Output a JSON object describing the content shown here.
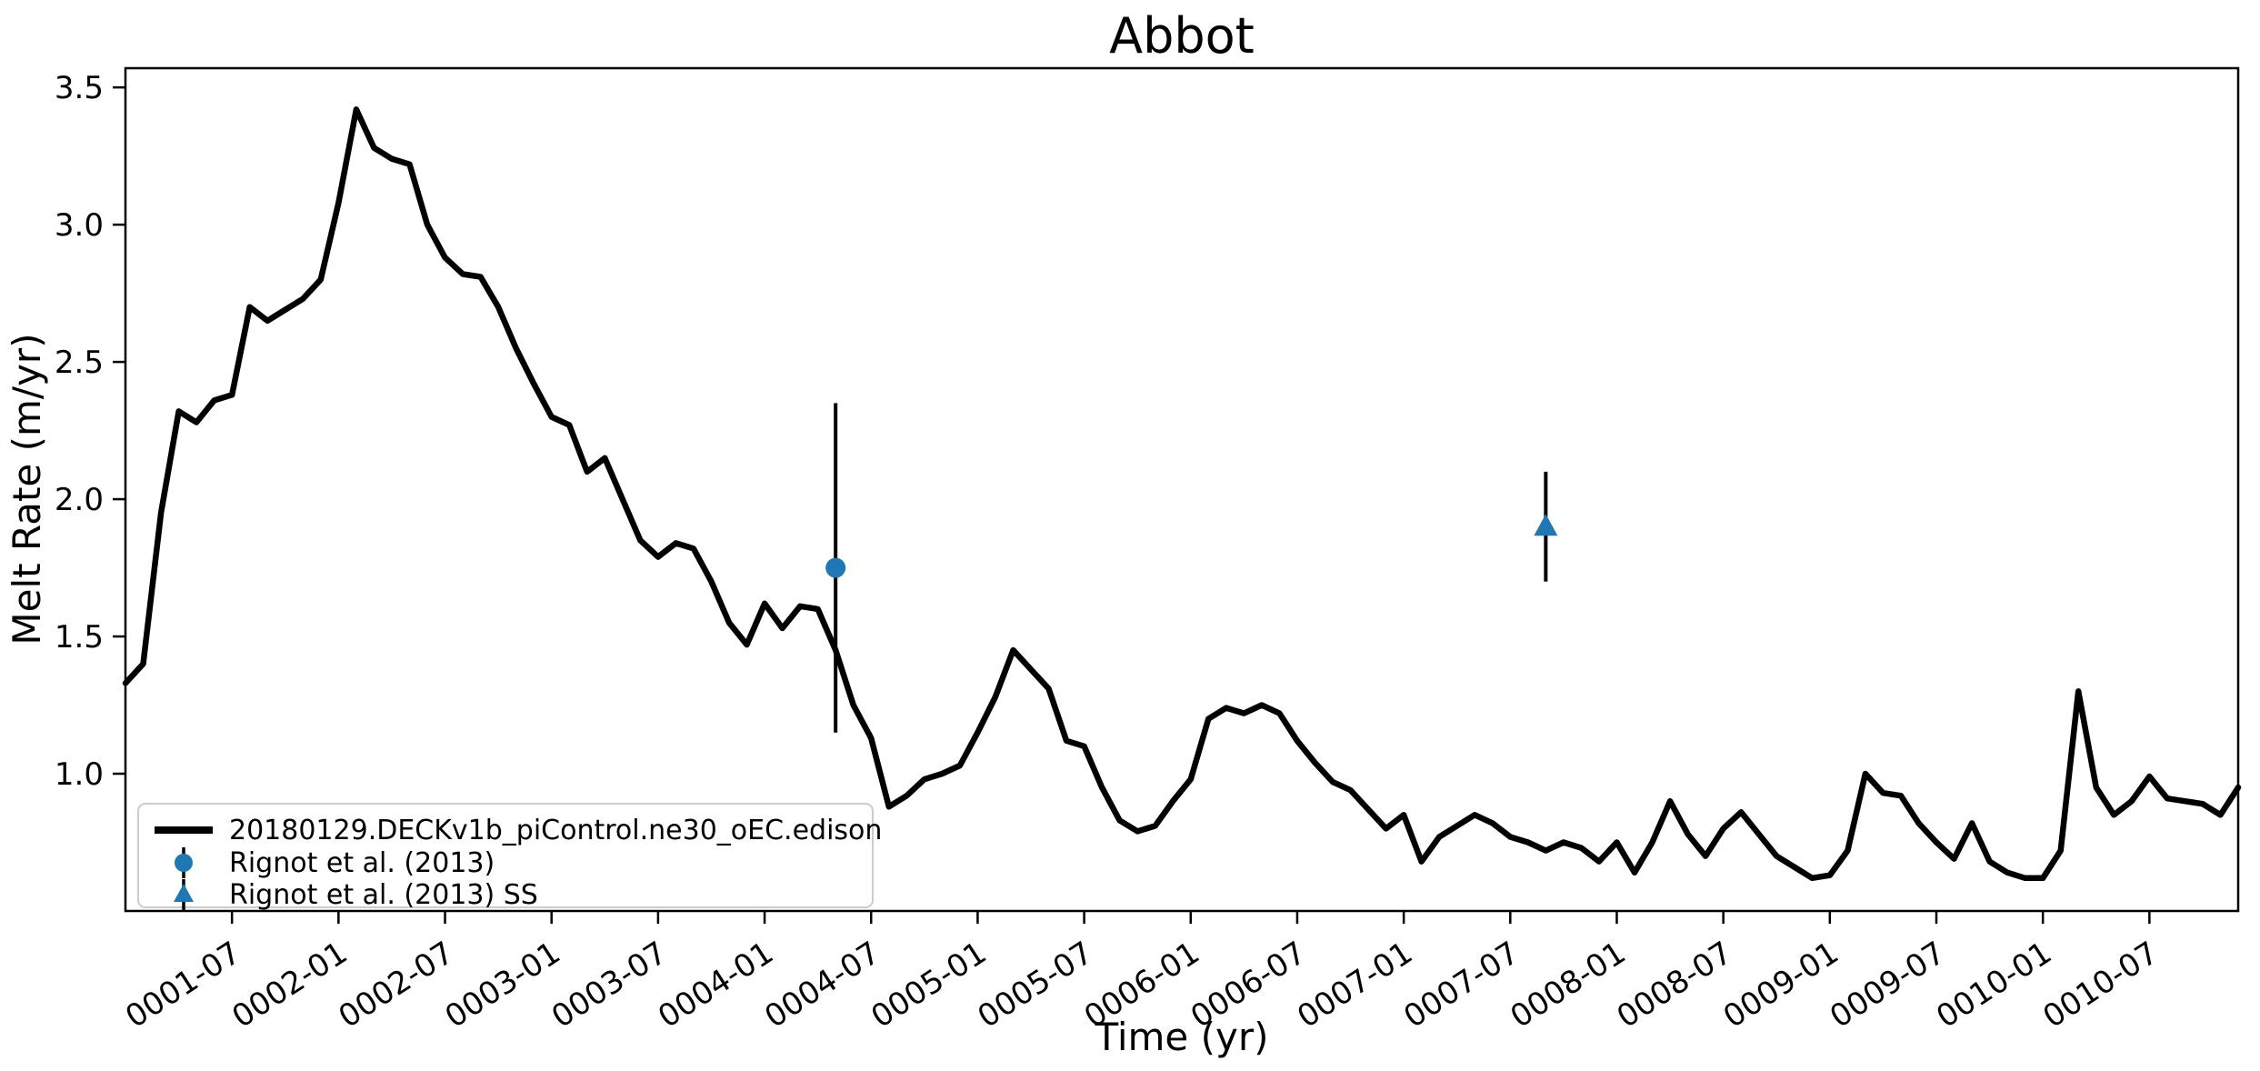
{
  "chart_data": {
    "type": "line",
    "title": "Abbot",
    "xlabel": "Time (yr)",
    "ylabel": "Melt Rate (m/yr)",
    "grid": false,
    "legend_position": "lower left",
    "ylim": [
      0.5,
      3.57
    ],
    "yticks": [
      1.0,
      1.5,
      2.0,
      2.5,
      3.0,
      3.5
    ],
    "x_months_start": "0001-01",
    "x_months_count": 120,
    "x_tick_month_indices": [
      6,
      12,
      18,
      24,
      30,
      36,
      42,
      48,
      54,
      60,
      66,
      72,
      78,
      84,
      90,
      96,
      102,
      108,
      114
    ],
    "x_tick_labels": [
      "0001-07",
      "0002-01",
      "0002-07",
      "0003-01",
      "0003-07",
      "0004-01",
      "0004-07",
      "0005-01",
      "0005-07",
      "0006-01",
      "0006-07",
      "0007-01",
      "0007-07",
      "0008-01",
      "0008-07",
      "0009-01",
      "0009-07",
      "0010-01",
      "0010-07"
    ],
    "x_tick_rotation_deg": -33,
    "series": [
      {
        "name": "20180129.DECKv1b_piControl.ne30_oEC.edison",
        "type": "line",
        "color": "#000000",
        "linewidth": 6.5,
        "monthly_values": [
          1.33,
          1.4,
          1.95,
          2.32,
          2.28,
          2.36,
          2.38,
          2.7,
          2.65,
          2.69,
          2.73,
          2.8,
          3.08,
          3.42,
          3.28,
          3.24,
          3.22,
          3.0,
          2.88,
          2.82,
          2.81,
          2.7,
          2.55,
          2.42,
          2.3,
          2.27,
          2.1,
          2.15,
          2.0,
          1.85,
          1.79,
          1.84,
          1.82,
          1.7,
          1.55,
          1.47,
          1.62,
          1.53,
          1.61,
          1.6,
          1.45,
          1.25,
          1.13,
          0.88,
          0.92,
          0.98,
          1.0,
          1.03,
          1.15,
          1.28,
          1.45,
          1.38,
          1.31,
          1.12,
          1.1,
          0.95,
          0.83,
          0.79,
          0.81,
          0.9,
          0.98,
          1.2,
          1.24,
          1.22,
          1.25,
          1.22,
          1.12,
          1.04,
          0.97,
          0.94,
          0.87,
          0.8,
          0.85,
          0.68,
          0.77,
          0.81,
          0.85,
          0.82,
          0.77,
          0.75,
          0.72,
          0.75,
          0.73,
          0.68,
          0.75,
          0.64,
          0.75,
          0.9,
          0.78,
          0.7,
          0.8,
          0.86,
          0.78,
          0.7,
          0.66,
          0.62,
          0.63,
          0.72,
          1.0,
          0.93,
          0.92,
          0.82,
          0.75,
          0.69,
          0.82,
          0.68,
          0.64,
          0.62,
          0.62,
          0.72,
          1.3,
          0.95,
          0.85,
          0.9,
          0.99,
          0.91,
          0.9,
          0.89,
          0.85,
          0.95
        ]
      },
      {
        "name": "Rignot et al. (2013)",
        "type": "scatter-errorbar",
        "marker": "circle",
        "color": "#1f77b4",
        "errorbar_color": "#000000",
        "x_month": "0004-05",
        "x_index": 40,
        "value": 1.75,
        "yerr": 0.6
      },
      {
        "name": "Rignot et al. (2013) SS",
        "type": "scatter-errorbar",
        "marker": "triangle-up",
        "color": "#1f77b4",
        "errorbar_color": "#000000",
        "x_month": "0007-09",
        "x_index": 80,
        "value": 1.9,
        "yerr": 0.2
      }
    ]
  }
}
